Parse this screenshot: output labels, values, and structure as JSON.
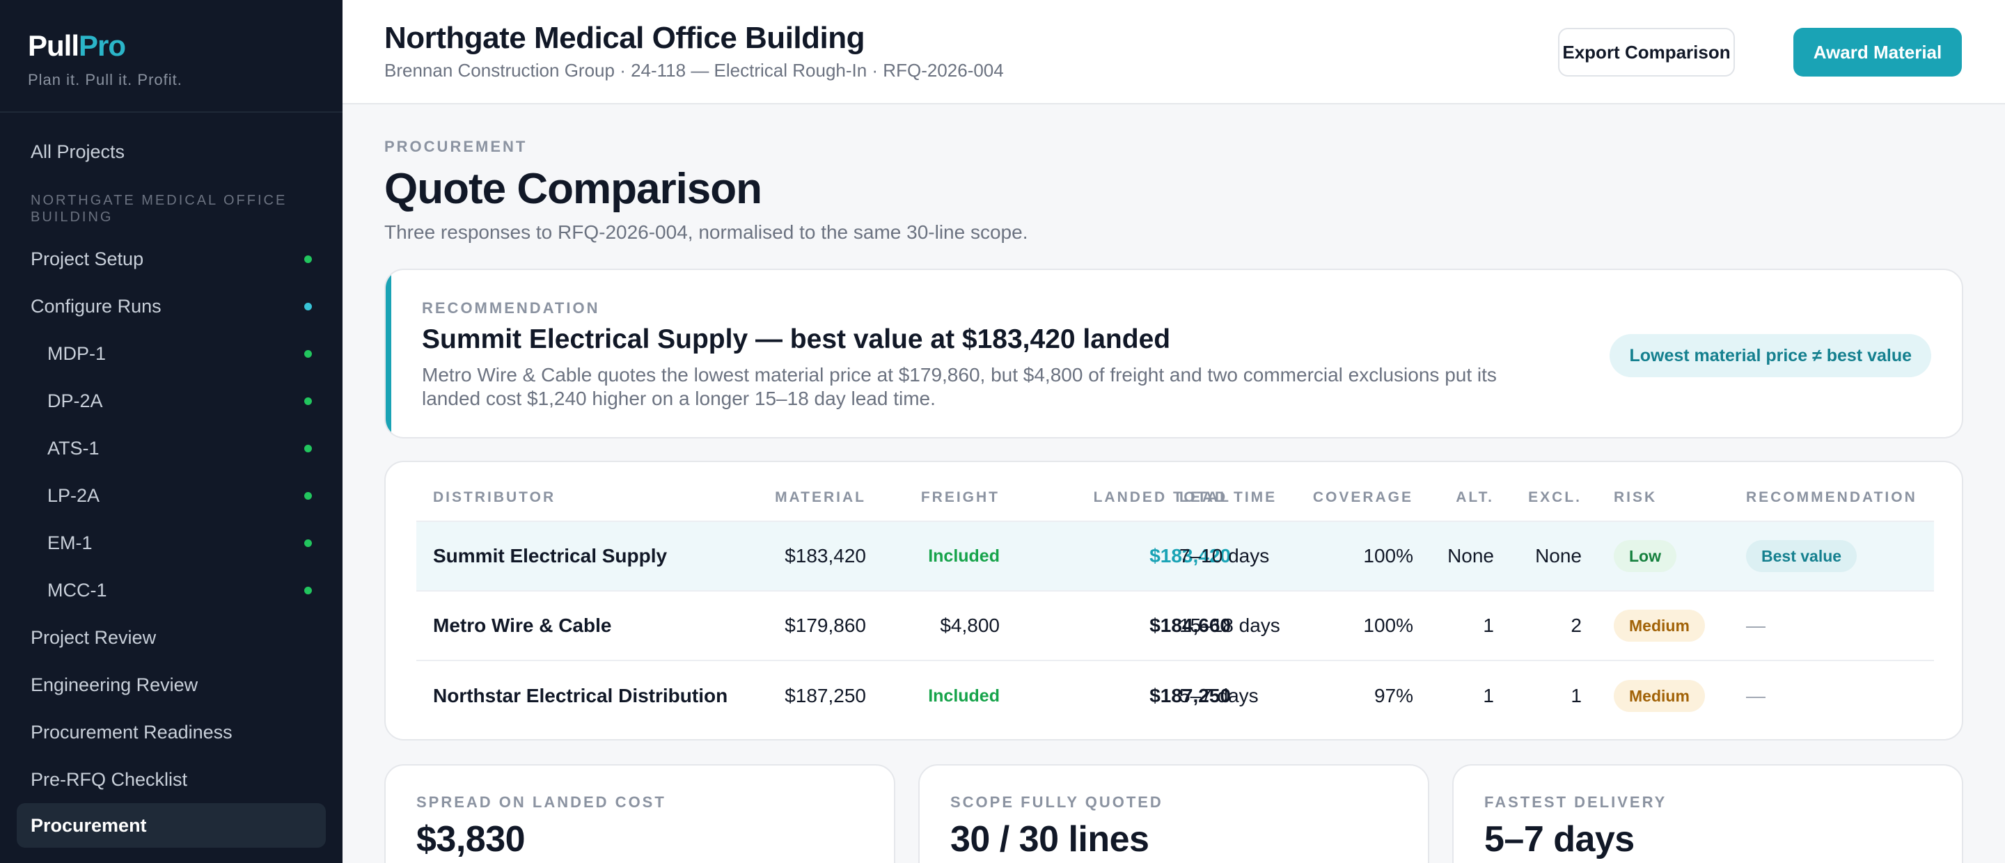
{
  "brand": {
    "name_part1": "Pull",
    "name_part2": "Pro",
    "tagline": "Plan it. Pull it. Profit.",
    "accent": "#2bb5c9"
  },
  "sidebar": {
    "top_item": "All Projects",
    "section_label": "NORTHGATE MEDICAL OFFICE BUILDING",
    "items": [
      {
        "label": "Project Setup",
        "status": "complete"
      },
      {
        "label": "Configure Runs",
        "status": "active"
      },
      {
        "label": "MDP-1",
        "status": "complete"
      },
      {
        "label": "DP-2A",
        "status": "complete"
      },
      {
        "label": "ATS-1",
        "status": "complete"
      },
      {
        "label": "LP-2A",
        "status": "complete"
      },
      {
        "label": "EM-1",
        "status": "complete"
      },
      {
        "label": "MCC-1",
        "status": "complete"
      },
      {
        "label": "Project Review"
      },
      {
        "label": "Engineering Review"
      },
      {
        "label": "Procurement Readiness"
      },
      {
        "label": "Pre-RFQ Checklist"
      },
      {
        "label": "Procurement",
        "active": true
      }
    ]
  },
  "header": {
    "title": "Northgate Medical Office Building",
    "subtitle": "Brennan Construction Group · 24-118 — Electrical Rough-In · RFQ-2026-004",
    "export_label": "Export Comparison",
    "award_label": "Award Material"
  },
  "page": {
    "eyebrow": "PROCUREMENT",
    "title": "Quote Comparison",
    "description": "Three responses to RFQ-2026-004, normalised to the same 30-line scope."
  },
  "recommendation": {
    "eyebrow": "RECOMMENDATION",
    "title": "Summit Electrical Supply — best value at $183,420 landed",
    "body": "Metro Wire & Cable quotes the lowest material price at $179,860, but $4,800 of freight and two commercial exclusions put its landed cost $1,240 higher on a longer 15–18 day lead time.",
    "pill": "Lowest material price ≠ best value"
  },
  "table": {
    "headers": {
      "distributor": "DISTRIBUTOR",
      "material": "MATERIAL",
      "freight": "FREIGHT",
      "landed": "LANDED TOTAL",
      "lead": "LEAD TIME",
      "coverage": "COVERAGE",
      "alt": "ALT.",
      "excl": "EXCL.",
      "risk": "RISK",
      "rec": "RECOMMENDATION"
    },
    "rows": [
      {
        "distributor": "Summit Electrical Supply",
        "material": "$183,420",
        "freight": "Included",
        "landed": "$183,420",
        "lead": "7–10 days",
        "coverage": "100%",
        "alt": "None",
        "excl": "None",
        "risk": "Low",
        "rec": "Best value"
      },
      {
        "distributor": "Metro Wire & Cable",
        "material": "$179,860",
        "freight": "$4,800",
        "landed": "$184,660",
        "lead": "15–18 days",
        "coverage": "100%",
        "alt": "1",
        "excl": "2",
        "risk": "Medium",
        "rec": "—"
      },
      {
        "distributor": "Northstar Electrical Distribution",
        "material": "$187,250",
        "freight": "Included",
        "landed": "$187,250",
        "lead": "5–7 days",
        "coverage": "97%",
        "alt": "1",
        "excl": "1",
        "risk": "Medium",
        "rec": "—"
      }
    ]
  },
  "stats": [
    {
      "label": "SPREAD ON LANDED COST",
      "value": "$3,830"
    },
    {
      "label": "SCOPE FULLY QUOTED",
      "value": "30 / 30 lines"
    },
    {
      "label": "FASTEST DELIVERY",
      "value": "5–7 days"
    }
  ],
  "colors": {
    "primary": "#1aa3b5",
    "complete_dot": "#22c55e",
    "active_dot": "#38c3d6",
    "sidebar_bg": "#111827"
  }
}
